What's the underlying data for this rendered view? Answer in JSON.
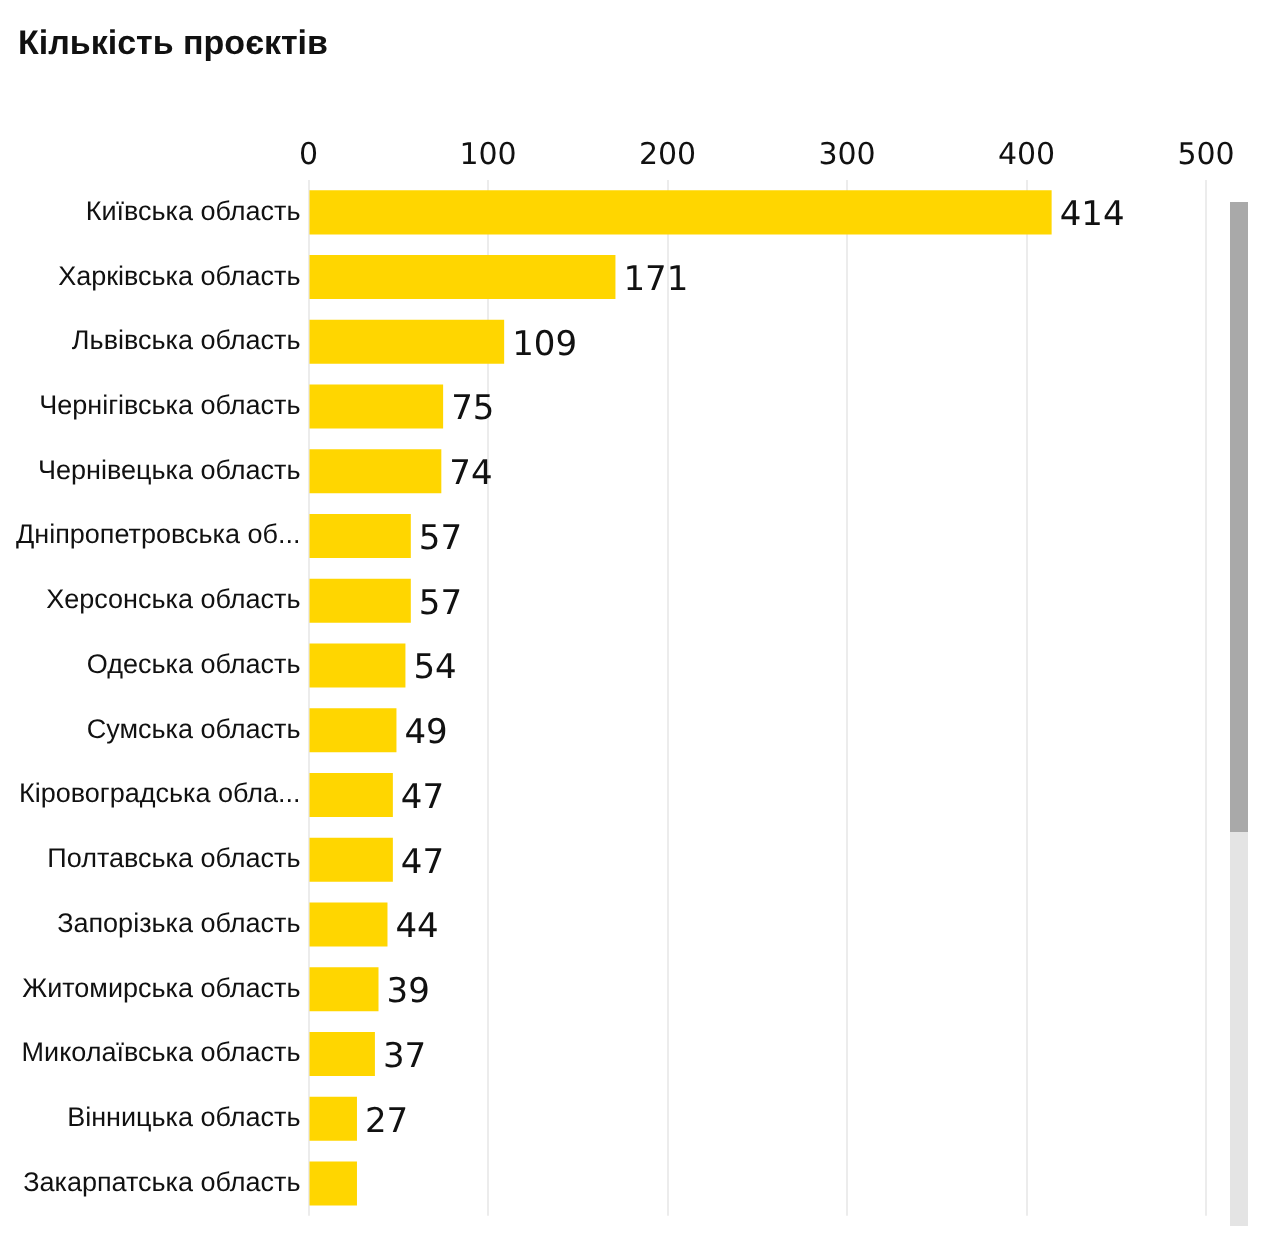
{
  "chart_data": {
    "type": "bar",
    "orientation": "horizontal",
    "title": "Кількість проєктів",
    "categories": [
      "Київська область",
      "Харківська область",
      "Львівська область",
      "Чернігівська область",
      "Чернівецька область",
      "Дніпропетровська об...",
      "Херсонська область",
      "Одеська область",
      "Сумська область",
      "Кіровоградська обла...",
      "Полтавська область",
      "Запорізька область",
      "Житомирська область",
      "Миколаївська область",
      "Вінницька область",
      "Закарпатська область"
    ],
    "values": [
      414,
      171,
      109,
      75,
      74,
      57,
      57,
      54,
      49,
      47,
      47,
      44,
      39,
      37,
      27,
      27
    ],
    "value_labels": [
      "414",
      "171",
      "109",
      "75",
      "74",
      "57",
      "57",
      "54",
      "49",
      "47",
      "47",
      "44",
      "39",
      "37",
      "27",
      null
    ],
    "color": "#ffd600",
    "xlim": [
      0,
      500
    ],
    "xticks": [
      0,
      100,
      200,
      300,
      400,
      500
    ],
    "grid": "x",
    "legend": false
  }
}
